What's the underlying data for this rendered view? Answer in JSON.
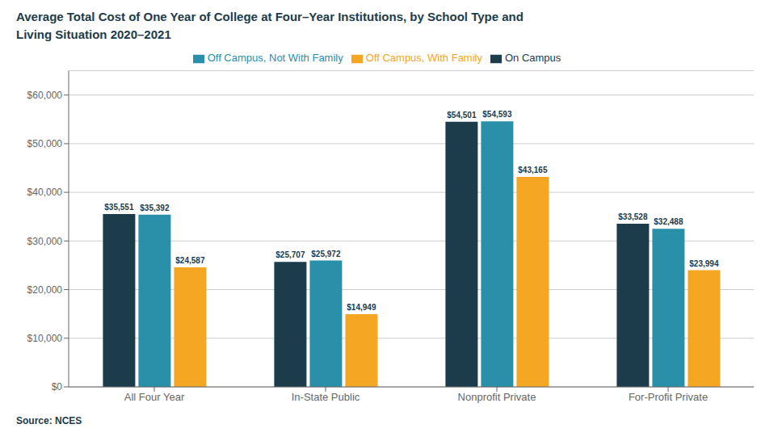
{
  "chart_data": {
    "type": "bar",
    "title": "Average Total Cost of One Year of College at Four–Year Institutions, by School Type and",
    "subtitle": "Living Situation 2020–2021",
    "categories": [
      "All Four Year",
      "In-State Public",
      "Nonprofit Private",
      "For-Profit Private"
    ],
    "series": [
      {
        "name": "On Campus",
        "color": "#1d3c4b",
        "values": [
          35551,
          25707,
          54501,
          33528
        ],
        "value_labels": [
          "$35,551",
          "$25,707",
          "$54,501",
          "$33,528"
        ]
      },
      {
        "name": "Off Campus, Not With Family",
        "color": "#2a8fa8",
        "values": [
          35392,
          25972,
          54593,
          32488
        ],
        "value_labels": [
          "$35,392",
          "$25,972",
          "$54,593",
          "$32,488"
        ]
      },
      {
        "name": "Off Campus, With Family",
        "color": "#f5a623",
        "values": [
          24587,
          14949,
          43165,
          23994
        ],
        "value_labels": [
          "$24,587",
          "$14,949",
          "$43,165",
          "$23,994"
        ]
      }
    ],
    "ylim": [
      0,
      65000
    ],
    "yticks": [
      {
        "value": 0,
        "label": "$0"
      },
      {
        "value": 10000,
        "label": "$10,000"
      },
      {
        "value": 20000,
        "label": "$20,000"
      },
      {
        "value": 30000,
        "label": "$30,000"
      },
      {
        "value": 40000,
        "label": "$40,000"
      },
      {
        "value": 50000,
        "label": "$50,000"
      },
      {
        "value": 60000,
        "label": "$60,000"
      }
    ],
    "grid": true,
    "legend": "top",
    "data_labels": true,
    "annotations": [
      "Source: NCES"
    ]
  }
}
